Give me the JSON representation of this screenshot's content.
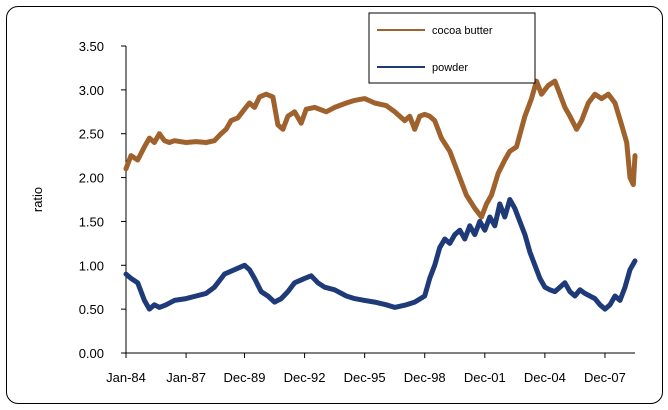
{
  "chart_data": {
    "type": "line",
    "title": "",
    "xlabel": "",
    "ylabel": "ratio",
    "ylim": [
      0,
      3.5
    ],
    "y_ticks": [
      "0.00",
      "0.50",
      "1.00",
      "1.50",
      "2.00",
      "2.50",
      "3.00",
      "3.50"
    ],
    "x_range": [
      "1984-01",
      "2009-06"
    ],
    "x_ticks": [
      {
        "date": "1984-01",
        "label": "Jan-84"
      },
      {
        "date": "1987-01",
        "label": "Jan-87"
      },
      {
        "date": "1989-12",
        "label": "Dec-89"
      },
      {
        "date": "1992-12",
        "label": "Dec-92"
      },
      {
        "date": "1995-12",
        "label": "Dec-95"
      },
      {
        "date": "1998-12",
        "label": "Dec-98"
      },
      {
        "date": "2001-12",
        "label": "Dec-01"
      },
      {
        "date": "2004-12",
        "label": "Dec-04"
      },
      {
        "date": "2007-12",
        "label": "Dec-07"
      }
    ],
    "legend_position": "top-right",
    "series": [
      {
        "name": "cocoa butter",
        "color": "#A0622D",
        "points": [
          [
            "1984-01",
            2.1
          ],
          [
            "1984-04",
            2.25
          ],
          [
            "1984-08",
            2.2
          ],
          [
            "1984-12",
            2.35
          ],
          [
            "1985-03",
            2.45
          ],
          [
            "1985-06",
            2.4
          ],
          [
            "1985-09",
            2.5
          ],
          [
            "1985-12",
            2.42
          ],
          [
            "1986-03",
            2.4
          ],
          [
            "1986-06",
            2.42
          ],
          [
            "1987-01",
            2.4
          ],
          [
            "1987-07",
            2.41
          ],
          [
            "1988-01",
            2.4
          ],
          [
            "1988-06",
            2.42
          ],
          [
            "1988-10",
            2.5
          ],
          [
            "1989-01",
            2.55
          ],
          [
            "1989-04",
            2.65
          ],
          [
            "1989-08",
            2.68
          ],
          [
            "1989-12",
            2.78
          ],
          [
            "1990-03",
            2.85
          ],
          [
            "1990-06",
            2.8
          ],
          [
            "1990-09",
            2.92
          ],
          [
            "1991-01",
            2.95
          ],
          [
            "1991-05",
            2.92
          ],
          [
            "1991-08",
            2.6
          ],
          [
            "1991-11",
            2.55
          ],
          [
            "1992-02",
            2.7
          ],
          [
            "1992-06",
            2.75
          ],
          [
            "1992-10",
            2.62
          ],
          [
            "1993-01",
            2.78
          ],
          [
            "1993-06",
            2.8
          ],
          [
            "1994-01",
            2.75
          ],
          [
            "1994-06",
            2.8
          ],
          [
            "1995-01",
            2.85
          ],
          [
            "1995-06",
            2.88
          ],
          [
            "1995-12",
            2.9
          ],
          [
            "1996-06",
            2.85
          ],
          [
            "1997-01",
            2.82
          ],
          [
            "1997-06",
            2.75
          ],
          [
            "1997-12",
            2.65
          ],
          [
            "1998-03",
            2.7
          ],
          [
            "1998-06",
            2.55
          ],
          [
            "1998-09",
            2.7
          ],
          [
            "1998-12",
            2.72
          ],
          [
            "1999-03",
            2.7
          ],
          [
            "1999-06",
            2.65
          ],
          [
            "1999-10",
            2.45
          ],
          [
            "2000-03",
            2.3
          ],
          [
            "2000-08",
            2.05
          ],
          [
            "2001-01",
            1.8
          ],
          [
            "2001-06",
            1.65
          ],
          [
            "2001-10",
            1.55
          ],
          [
            "2002-01",
            1.7
          ],
          [
            "2002-04",
            1.8
          ],
          [
            "2002-08",
            2.05
          ],
          [
            "2002-12",
            2.2
          ],
          [
            "2003-03",
            2.3
          ],
          [
            "2003-07",
            2.35
          ],
          [
            "2003-12",
            2.7
          ],
          [
            "2004-04",
            2.9
          ],
          [
            "2004-07",
            3.1
          ],
          [
            "2004-10",
            2.95
          ],
          [
            "2005-02",
            3.05
          ],
          [
            "2005-06",
            3.1
          ],
          [
            "2005-09",
            2.95
          ],
          [
            "2005-12",
            2.8
          ],
          [
            "2006-03",
            2.7
          ],
          [
            "2006-07",
            2.55
          ],
          [
            "2006-10",
            2.65
          ],
          [
            "2007-02",
            2.85
          ],
          [
            "2007-06",
            2.95
          ],
          [
            "2007-10",
            2.9
          ],
          [
            "2008-02",
            2.95
          ],
          [
            "2008-06",
            2.85
          ],
          [
            "2008-10",
            2.6
          ],
          [
            "2009-01",
            2.4
          ],
          [
            "2009-03",
            2.0
          ],
          [
            "2009-05",
            1.92
          ],
          [
            "2009-06",
            2.25
          ]
        ]
      },
      {
        "name": "powder",
        "color": "#1F3A78",
        "points": [
          [
            "1984-01",
            0.9
          ],
          [
            "1984-04",
            0.85
          ],
          [
            "1984-08",
            0.8
          ],
          [
            "1984-12",
            0.6
          ],
          [
            "1985-03",
            0.5
          ],
          [
            "1985-06",
            0.55
          ],
          [
            "1985-09",
            0.52
          ],
          [
            "1986-01",
            0.55
          ],
          [
            "1986-06",
            0.6
          ],
          [
            "1987-01",
            0.62
          ],
          [
            "1987-07",
            0.65
          ],
          [
            "1988-01",
            0.68
          ],
          [
            "1988-06",
            0.75
          ],
          [
            "1988-12",
            0.9
          ],
          [
            "1989-06",
            0.95
          ],
          [
            "1989-12",
            1.0
          ],
          [
            "1990-03",
            0.95
          ],
          [
            "1990-06",
            0.85
          ],
          [
            "1990-10",
            0.7
          ],
          [
            "1991-02",
            0.65
          ],
          [
            "1991-06",
            0.58
          ],
          [
            "1991-10",
            0.62
          ],
          [
            "1992-02",
            0.7
          ],
          [
            "1992-06",
            0.8
          ],
          [
            "1992-12",
            0.85
          ],
          [
            "1993-04",
            0.88
          ],
          [
            "1993-08",
            0.8
          ],
          [
            "1993-12",
            0.75
          ],
          [
            "1994-06",
            0.72
          ],
          [
            "1995-01",
            0.65
          ],
          [
            "1995-06",
            0.62
          ],
          [
            "1995-12",
            0.6
          ],
          [
            "1996-06",
            0.58
          ],
          [
            "1997-01",
            0.55
          ],
          [
            "1997-06",
            0.52
          ],
          [
            "1998-01",
            0.55
          ],
          [
            "1998-06",
            0.58
          ],
          [
            "1998-12",
            0.65
          ],
          [
            "1999-03",
            0.85
          ],
          [
            "1999-06",
            1.0
          ],
          [
            "1999-09",
            1.2
          ],
          [
            "1999-12",
            1.3
          ],
          [
            "2000-03",
            1.25
          ],
          [
            "2000-06",
            1.35
          ],
          [
            "2000-09",
            1.4
          ],
          [
            "2000-12",
            1.3
          ],
          [
            "2001-03",
            1.45
          ],
          [
            "2001-06",
            1.35
          ],
          [
            "2001-09",
            1.5
          ],
          [
            "2001-12",
            1.4
          ],
          [
            "2002-03",
            1.55
          ],
          [
            "2002-06",
            1.45
          ],
          [
            "2002-09",
            1.7
          ],
          [
            "2002-12",
            1.55
          ],
          [
            "2003-03",
            1.75
          ],
          [
            "2003-06",
            1.65
          ],
          [
            "2003-09",
            1.5
          ],
          [
            "2003-12",
            1.35
          ],
          [
            "2004-03",
            1.15
          ],
          [
            "2004-06",
            1.0
          ],
          [
            "2004-09",
            0.85
          ],
          [
            "2004-12",
            0.75
          ],
          [
            "2005-03",
            0.72
          ],
          [
            "2005-06",
            0.7
          ],
          [
            "2005-09",
            0.75
          ],
          [
            "2005-12",
            0.8
          ],
          [
            "2006-03",
            0.7
          ],
          [
            "2006-06",
            0.65
          ],
          [
            "2006-09",
            0.72
          ],
          [
            "2006-12",
            0.68
          ],
          [
            "2007-03",
            0.65
          ],
          [
            "2007-06",
            0.62
          ],
          [
            "2007-09",
            0.55
          ],
          [
            "2007-12",
            0.5
          ],
          [
            "2008-03",
            0.55
          ],
          [
            "2008-06",
            0.65
          ],
          [
            "2008-09",
            0.6
          ],
          [
            "2008-12",
            0.75
          ],
          [
            "2009-03",
            0.95
          ],
          [
            "2009-06",
            1.05
          ]
        ]
      }
    ]
  }
}
